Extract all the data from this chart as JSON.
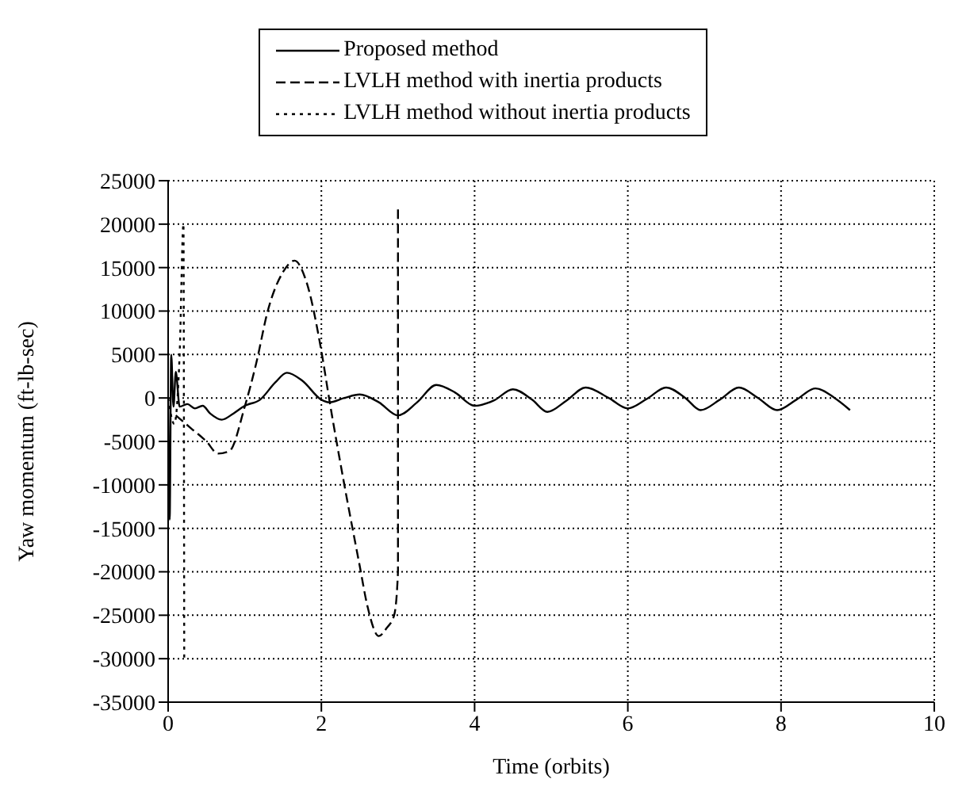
{
  "chart_data": {
    "type": "line",
    "xlabel": "Time (orbits)",
    "ylabel": "Yaw momentum (ft-lb-sec)",
    "xlim": [
      0,
      10
    ],
    "xticks": [
      0,
      2,
      4,
      6,
      8,
      10
    ],
    "ylim": [
      -35000,
      25000
    ],
    "yticks": [
      -35000,
      -30000,
      -25000,
      -20000,
      -15000,
      -10000,
      -5000,
      0,
      5000,
      10000,
      15000,
      20000,
      25000
    ],
    "grid": true,
    "legend": "top",
    "marker": "none",
    "series": [
      {
        "name": "Proposed method",
        "color": "#000000",
        "line_style": "solid",
        "x": [
          0,
          0.02,
          0.04,
          0.07,
          0.1,
          0.15,
          0.25,
          0.35,
          0.45,
          0.55,
          0.7,
          0.85,
          1.0,
          1.2,
          1.4,
          1.55,
          1.75,
          2.0,
          2.1,
          2.3,
          2.5,
          2.75,
          3.0,
          3.25,
          3.5,
          3.75,
          4.0,
          4.25,
          4.5,
          4.75,
          4.95,
          5.2,
          5.45,
          5.75,
          6.0,
          6.25,
          6.5,
          6.75,
          6.95,
          7.2,
          7.45,
          7.7,
          7.95,
          8.2,
          8.45,
          8.7,
          8.9
        ],
        "values": [
          0,
          -14000,
          5000,
          -1000,
          3000,
          -1000,
          -700,
          -1200,
          -900,
          -1800,
          -2500,
          -1800,
          -900,
          -200,
          1800,
          2900,
          2000,
          -200,
          -500,
          0,
          400,
          -500,
          -2000,
          -500,
          1500,
          600,
          -900,
          -300,
          1000,
          -200,
          -1600,
          -300,
          1200,
          0,
          -1200,
          -100,
          1200,
          0,
          -1400,
          -200,
          1200,
          0,
          -1400,
          -200,
          1100,
          0,
          -1400
        ]
      },
      {
        "name": "LVLH method with inertia products",
        "color": "#000000",
        "line_style": "dashed",
        "x": [
          0.1,
          0.3,
          0.5,
          0.65,
          0.8,
          1.0,
          1.15,
          1.3,
          1.5,
          1.65,
          1.8,
          2.0,
          2.1,
          2.3,
          2.5,
          2.6,
          2.75,
          2.85,
          2.95,
          3.0,
          3.0
        ],
        "values": [
          -2000,
          -3500,
          -5000,
          -6400,
          -6100,
          -1000,
          4000,
          10000,
          14500,
          15800,
          13500,
          5400,
          0,
          -10000,
          -19300,
          -23900,
          -27400,
          -26500,
          -25000,
          -20000,
          22000
        ]
      },
      {
        "name": "LVLH method without inertia products",
        "color": "#000000",
        "line_style": "dotted",
        "x": [
          0,
          0.08,
          0.15,
          0.2,
          0.21
        ],
        "values": [
          0,
          -3000,
          5000,
          20000,
          -30000
        ]
      }
    ]
  }
}
